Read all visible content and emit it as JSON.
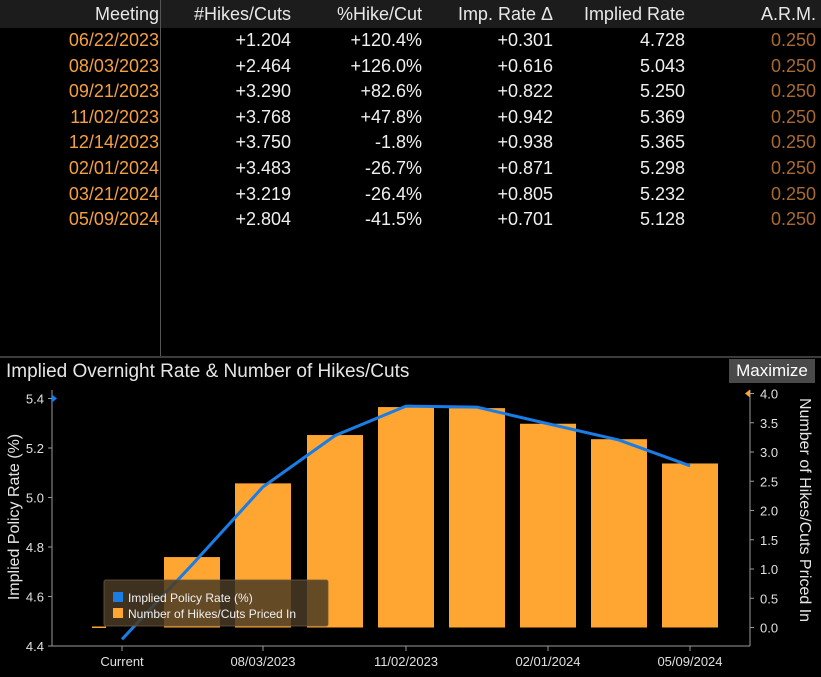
{
  "table": {
    "headers": [
      "Meeting",
      "#Hikes/Cuts",
      "%Hike/Cut",
      "Imp. Rate Δ",
      "Implied Rate",
      "A.R.M."
    ],
    "rows": [
      {
        "meeting": "06/22/2023",
        "hikes": "+1.204",
        "pct": "+120.4%",
        "delta": "+0.301",
        "rate": "4.728",
        "arm": "0.250"
      },
      {
        "meeting": "08/03/2023",
        "hikes": "+2.464",
        "pct": "+126.0%",
        "delta": "+0.616",
        "rate": "5.043",
        "arm": "0.250"
      },
      {
        "meeting": "09/21/2023",
        "hikes": "+3.290",
        "pct": "+82.6%",
        "delta": "+0.822",
        "rate": "5.250",
        "arm": "0.250"
      },
      {
        "meeting": "11/02/2023",
        "hikes": "+3.768",
        "pct": "+47.8%",
        "delta": "+0.942",
        "rate": "5.369",
        "arm": "0.250"
      },
      {
        "meeting": "12/14/2023",
        "hikes": "+3.750",
        "pct": "-1.8%",
        "delta": "+0.938",
        "rate": "5.365",
        "arm": "0.250"
      },
      {
        "meeting": "02/01/2024",
        "hikes": "+3.483",
        "pct": "-26.7%",
        "delta": "+0.871",
        "rate": "5.298",
        "arm": "0.250"
      },
      {
        "meeting": "03/21/2024",
        "hikes": "+3.219",
        "pct": "-26.4%",
        "delta": "+0.805",
        "rate": "5.232",
        "arm": "0.250"
      },
      {
        "meeting": "05/09/2024",
        "hikes": "+2.804",
        "pct": "-41.5%",
        "delta": "+0.701",
        "rate": "5.128",
        "arm": "0.250"
      }
    ]
  },
  "chart_panel": {
    "title": "Implied Overnight Rate & Number of Hikes/Cuts",
    "maximize_label": "Maximize"
  },
  "colors": {
    "line": "#1a7de6",
    "bars": "#ffa531",
    "date_text": "#f5a040",
    "arm_text": "#a86a30"
  },
  "chart_data": {
    "type": "bar",
    "categories": [
      "Current",
      "06/22/2023",
      "08/03/2023",
      "09/21/2023",
      "11/02/2023",
      "12/14/2023",
      "02/01/2024",
      "03/21/2024",
      "05/09/2024"
    ],
    "x_tick_labels": [
      "Current",
      "08/03/2023",
      "11/02/2023",
      "02/01/2024",
      "05/09/2024"
    ],
    "series": [
      {
        "name": "Implied Policy Rate (%)",
        "type": "line",
        "axis": "left",
        "values": [
          4.427,
          4.728,
          5.043,
          5.25,
          5.369,
          5.365,
          5.298,
          5.232,
          5.128
        ]
      },
      {
        "name": "Number of Hikes/Cuts Priced In",
        "type": "bar",
        "axis": "right",
        "values": [
          0,
          1.204,
          2.464,
          3.29,
          3.768,
          3.75,
          3.483,
          3.219,
          2.804
        ]
      }
    ],
    "ylabel_left": "Implied Policy Rate (%)",
    "ylabel_right": "Number of Hikes/Cuts Priced In",
    "ylim_left": [
      4.4,
      5.45
    ],
    "ylim_right": [
      -0.1,
      4.0
    ],
    "left_ticks": [
      "4.4",
      "4.6",
      "4.8",
      "5.0",
      "5.2",
      "5.4"
    ],
    "right_ticks": [
      "0.0",
      "0.5",
      "1.0",
      "1.5",
      "2.0",
      "2.5",
      "3.0",
      "3.5",
      "4.0"
    ],
    "legend_position": "bottom-left",
    "grid": false
  }
}
